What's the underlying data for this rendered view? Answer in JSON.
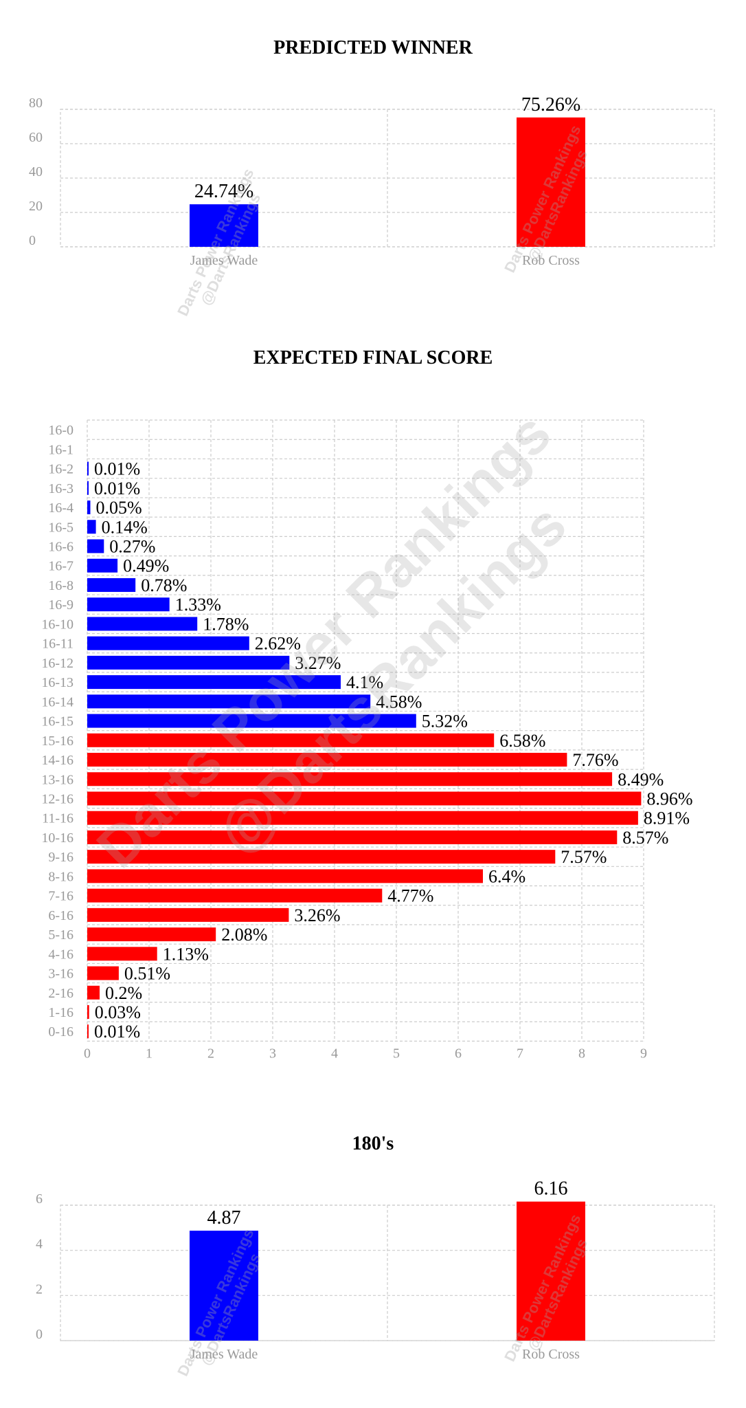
{
  "colors": {
    "player1": "#0000ff",
    "player2": "#ff0000",
    "grid": "#cccccc",
    "tick": "#999999"
  },
  "watermark": {
    "line1": "Darts Power Rankings",
    "line2": "@DartsRankings"
  },
  "chart_data": [
    {
      "type": "bar",
      "title": "PREDICTED WINNER",
      "categories": [
        "James Wade",
        "Rob Cross"
      ],
      "values": [
        24.74,
        75.26
      ],
      "labels": [
        "24.74%",
        "75.26%"
      ],
      "bar_colors": [
        "#0000ff",
        "#ff0000"
      ],
      "ylim": [
        0,
        80
      ],
      "yticks": [
        "0",
        "20",
        "40",
        "60",
        "80"
      ],
      "grid": true
    },
    {
      "type": "bar",
      "orientation": "horizontal",
      "title": "EXPECTED FINAL SCORE",
      "categories": [
        "16-0",
        "16-1",
        "16-2",
        "16-3",
        "16-4",
        "16-5",
        "16-6",
        "16-7",
        "16-8",
        "16-9",
        "16-10",
        "16-11",
        "16-12",
        "16-13",
        "16-14",
        "16-15",
        "15-16",
        "14-16",
        "13-16",
        "12-16",
        "11-16",
        "10-16",
        "9-16",
        "8-16",
        "7-16",
        "6-16",
        "5-16",
        "4-16",
        "3-16",
        "2-16",
        "1-16",
        "0-16"
      ],
      "values": [
        0,
        0,
        0.01,
        0.01,
        0.05,
        0.14,
        0.27,
        0.49,
        0.78,
        1.33,
        1.78,
        2.62,
        3.27,
        4.1,
        4.58,
        5.32,
        6.58,
        7.76,
        8.49,
        8.96,
        8.91,
        8.57,
        7.57,
        6.4,
        4.77,
        3.26,
        2.08,
        1.13,
        0.51,
        0.2,
        0.03,
        0.01
      ],
      "labels": [
        "",
        "",
        "0.01%",
        "0.01%",
        "0.05%",
        "0.14%",
        "0.27%",
        "0.49%",
        "0.78%",
        "1.33%",
        "1.78%",
        "2.62%",
        "3.27%",
        "4.1%",
        "4.58%",
        "5.32%",
        "6.58%",
        "7.76%",
        "8.49%",
        "8.96%",
        "8.91%",
        "8.57%",
        "7.57%",
        "6.4%",
        "4.77%",
        "3.26%",
        "2.08%",
        "1.13%",
        "0.51%",
        "0.2%",
        "0.03%",
        "0.01%"
      ],
      "bar_colors": [
        "#0000ff",
        "#0000ff",
        "#0000ff",
        "#0000ff",
        "#0000ff",
        "#0000ff",
        "#0000ff",
        "#0000ff",
        "#0000ff",
        "#0000ff",
        "#0000ff",
        "#0000ff",
        "#0000ff",
        "#0000ff",
        "#0000ff",
        "#0000ff",
        "#ff0000",
        "#ff0000",
        "#ff0000",
        "#ff0000",
        "#ff0000",
        "#ff0000",
        "#ff0000",
        "#ff0000",
        "#ff0000",
        "#ff0000",
        "#ff0000",
        "#ff0000",
        "#ff0000",
        "#ff0000",
        "#ff0000",
        "#ff0000"
      ],
      "xlim": [
        0,
        9
      ],
      "xticks": [
        "0",
        "1",
        "2",
        "3",
        "4",
        "5",
        "6",
        "7",
        "8",
        "9"
      ],
      "grid": true
    },
    {
      "type": "bar",
      "title": "180's",
      "categories": [
        "James Wade",
        "Rob Cross"
      ],
      "values": [
        4.87,
        6.16
      ],
      "labels": [
        "4.87",
        "6.16"
      ],
      "bar_colors": [
        "#0000ff",
        "#ff0000"
      ],
      "ylim": [
        0,
        6
      ],
      "yticks": [
        "0",
        "2",
        "4",
        "6"
      ],
      "grid": true
    }
  ]
}
